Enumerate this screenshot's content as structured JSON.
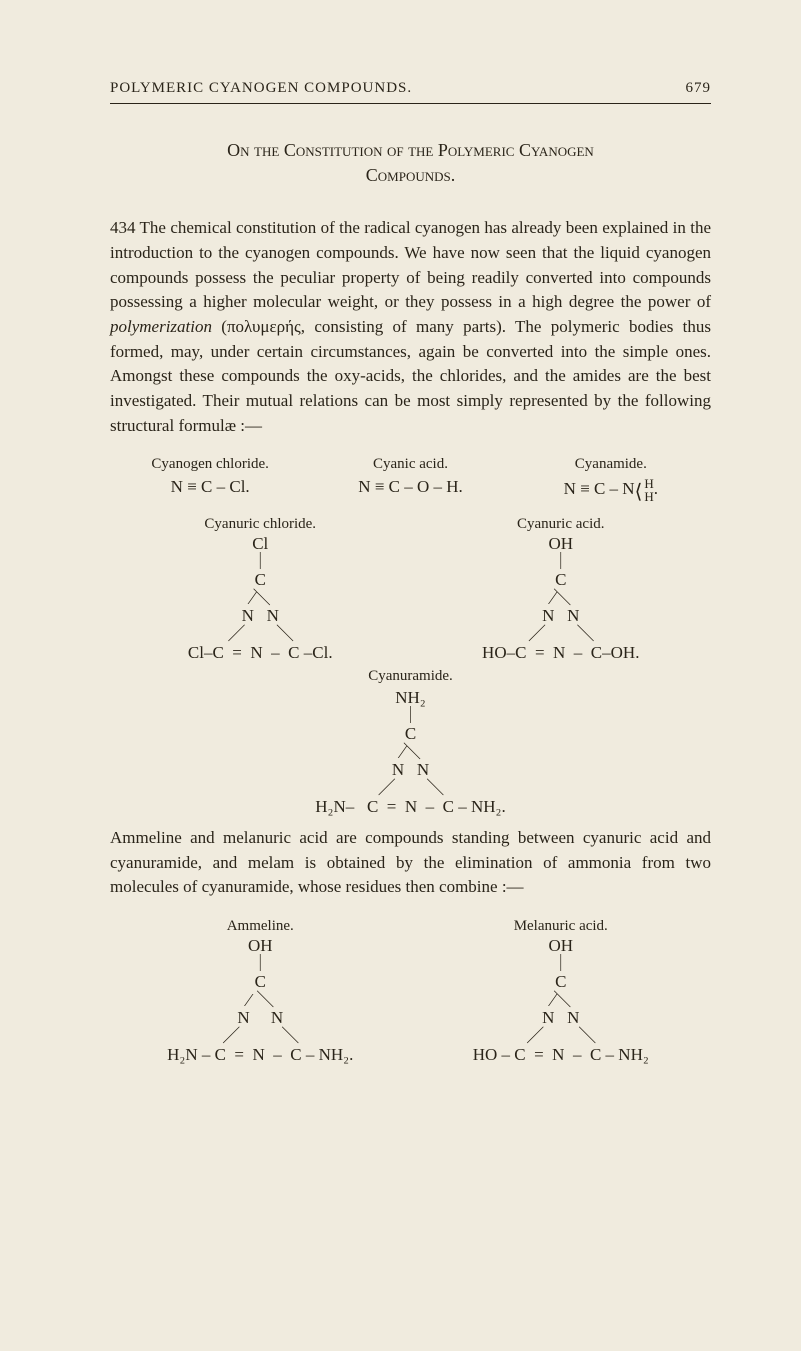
{
  "running_head": {
    "title": "POLYMERIC CYANOGEN COMPOUNDS.",
    "page_number": "679"
  },
  "section_title": {
    "line1": "On the Constitution of the Polymeric Cyanogen",
    "line2": "Compounds."
  },
  "para1": {
    "leadnum": "434",
    "text": " The chemical constitution of the radical cyanogen has already been explained in the introduction to the cyanogen compounds. We have now seen that the liquid cyanogen compounds possess the peculiar property of being readily converted into compounds possessing a higher molecular weight, or they possess in a high degree the power of ",
    "ital": "polymerization",
    "greek": " (πολυμερής, ",
    "text2": "consisting of many parts). The polymeric bodies thus formed, may, under certain circumstances, again be converted into the simple ones. Amongst these compounds the oxy-acids, the chlorides, and the amides are the best investigated. Their mutual relations can be most simply represented by the following structural formulæ :—"
  },
  "row1_heads": {
    "a": "Cyanogen chloride.",
    "b": "Cyanic acid.",
    "c": "Cyanamide."
  },
  "row1_formulas": {
    "a": "N ≡ C – Cl.",
    "b": "N ≡ C – O – H.",
    "c_prefix": "N ≡ C – N",
    "c_top": "H",
    "c_bot": "H"
  },
  "pair_heads": {
    "left": "Cyanuric chloride.",
    "right": "Cyanuric acid."
  },
  "struct_left": {
    "l1": "Cl",
    "l2": "｜",
    "l3": "C",
    "l4": "⁄＼",
    "l5": "N   N",
    "l6": "／         ＼",
    "l7": "Cl–C  =  N  –  C –Cl."
  },
  "struct_right": {
    "l1": "OH",
    "l2": "｜",
    "l3": "C",
    "l4": "⁄＼",
    "l5": "N   N",
    "l6": "／         ＼",
    "l7": "HO–C  =  N  –  C–OH."
  },
  "center_struct": {
    "caption": "Cyanuramide.",
    "l1": "NH₂",
    "l2": "｜",
    "l3": "C",
    "l4": "⁄＼",
    "l5": "N   N",
    "l6": "／         ＼",
    "l7": "H₂N–   C  =  N  –  C – NH₂."
  },
  "para2": "Ammeline and melanuric acid are compounds standing between cyanuric acid and cyanuramide, and melam is obtained by the elimination of ammonia from two molecules of cyanuramide, whose residues then combine :—",
  "pair2_heads": {
    "left": "Ammeline.",
    "right": "Melanuric acid."
  },
  "struct2_left": {
    "l1": "OH",
    "l2": "｜",
    "l3": "C",
    "l4": "⁄  ＼",
    "l5": "N     N",
    "l6": "／            ＼",
    "l7": "H₂N – C  =  N  –  C – NH₂."
  },
  "struct2_right": {
    "l1": "OH",
    "l2": "｜",
    "l3": "C",
    "l4": "⁄＼",
    "l5": "N   N",
    "l6": "／          ＼",
    "l7": "HO – C  =  N  –  C – NH₂"
  }
}
